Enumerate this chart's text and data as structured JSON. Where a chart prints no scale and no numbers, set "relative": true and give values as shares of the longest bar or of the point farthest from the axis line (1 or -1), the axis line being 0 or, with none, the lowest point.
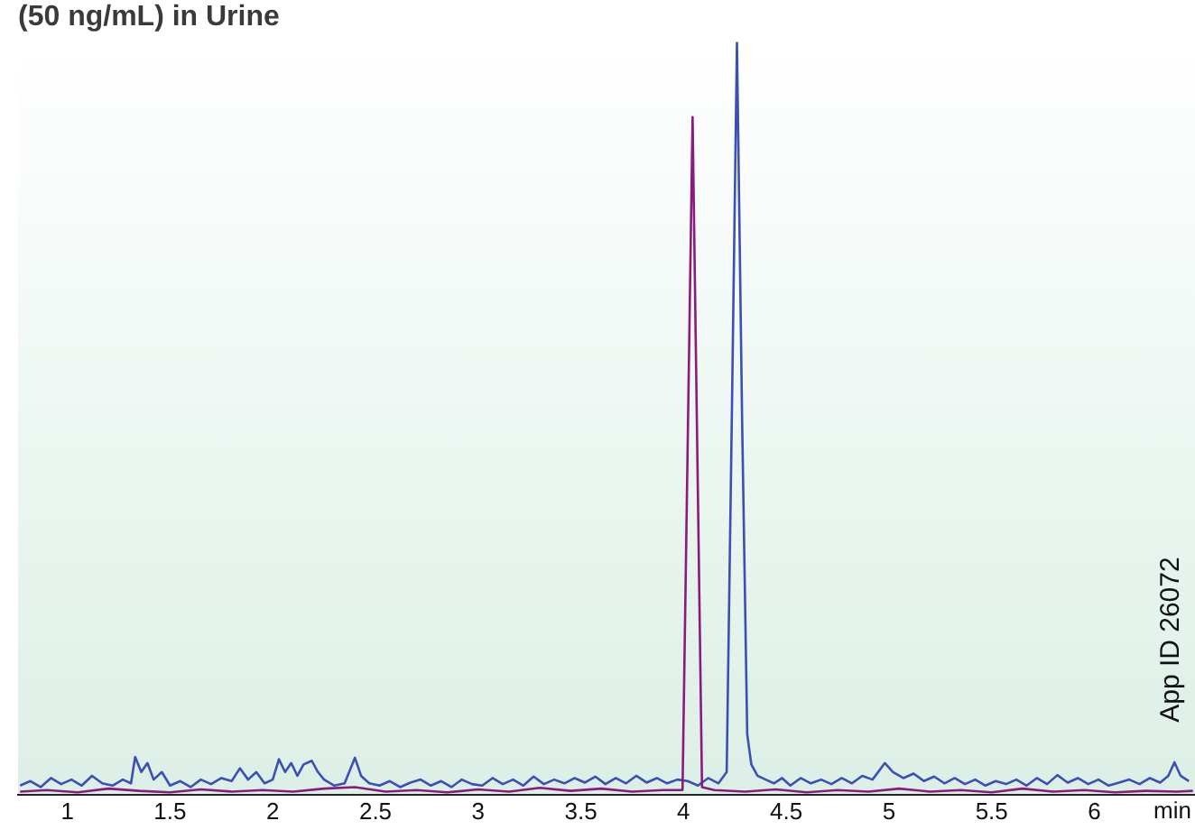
{
  "chart_data": {
    "type": "line",
    "title": "(50 ng/mL) in Urine",
    "xlabel": "min",
    "annotations": [
      "App ID 26072"
    ],
    "relative": true,
    "xlim": [
      0.76,
      6.49
    ],
    "xticks": [
      1,
      1.5,
      2,
      2.5,
      3,
      3.5,
      4,
      4.5,
      5,
      5.5,
      6
    ],
    "grid": false,
    "legend": false,
    "marker": "none",
    "line_style": "solid",
    "series": [
      {
        "color": "#8b1a80",
        "x": [
          0.77,
          0.9,
          1.05,
          1.2,
          1.35,
          1.5,
          1.65,
          1.8,
          1.95,
          2.1,
          2.25,
          2.4,
          2.55,
          2.7,
          2.85,
          3.0,
          3.15,
          3.3,
          3.45,
          3.6,
          3.75,
          3.9,
          3.995,
          4.044,
          4.09,
          4.15,
          4.3,
          4.45,
          4.6,
          4.75,
          4.9,
          5.05,
          5.2,
          5.35,
          5.5,
          5.65,
          5.8,
          5.95,
          6.1,
          6.25,
          6.4,
          6.48
        ],
        "values": [
          0.004,
          0.006,
          0.003,
          0.008,
          0.005,
          0.003,
          0.007,
          0.004,
          0.006,
          0.004,
          0.008,
          0.01,
          0.004,
          0.006,
          0.003,
          0.007,
          0.004,
          0.009,
          0.005,
          0.008,
          0.004,
          0.006,
          0.006,
          0.9,
          0.01,
          0.006,
          0.004,
          0.007,
          0.003,
          0.006,
          0.004,
          0.008,
          0.004,
          0.006,
          0.003,
          0.008,
          0.004,
          0.006,
          0.003,
          0.005,
          0.004,
          0.005
        ]
      },
      {
        "color": "#3b4fb4",
        "x": [
          0.77,
          0.82,
          0.87,
          0.92,
          0.97,
          1.02,
          1.07,
          1.12,
          1.17,
          1.22,
          1.27,
          1.31,
          1.33,
          1.36,
          1.39,
          1.42,
          1.46,
          1.5,
          1.55,
          1.6,
          1.65,
          1.7,
          1.75,
          1.8,
          1.84,
          1.88,
          1.92,
          1.96,
          2.0,
          2.03,
          2.06,
          2.09,
          2.12,
          2.15,
          2.19,
          2.22,
          2.25,
          2.3,
          2.35,
          2.4,
          2.43,
          2.47,
          2.52,
          2.57,
          2.62,
          2.67,
          2.72,
          2.77,
          2.82,
          2.87,
          2.92,
          2.97,
          3.02,
          3.07,
          3.12,
          3.17,
          3.22,
          3.27,
          3.32,
          3.37,
          3.42,
          3.47,
          3.52,
          3.57,
          3.62,
          3.67,
          3.72,
          3.77,
          3.82,
          3.87,
          3.92,
          3.97,
          4.02,
          4.07,
          4.12,
          4.17,
          4.21,
          4.235,
          4.26,
          4.285,
          4.31,
          4.33,
          4.36,
          4.4,
          4.44,
          4.48,
          4.52,
          4.57,
          4.62,
          4.67,
          4.72,
          4.77,
          4.82,
          4.87,
          4.92,
          4.98,
          5.02,
          5.07,
          5.12,
          5.17,
          5.22,
          5.27,
          5.32,
          5.37,
          5.42,
          5.47,
          5.52,
          5.57,
          5.62,
          5.67,
          5.72,
          5.77,
          5.82,
          5.87,
          5.92,
          5.97,
          6.02,
          6.07,
          6.12,
          6.17,
          6.22,
          6.27,
          6.32,
          6.36,
          6.39,
          6.42,
          6.46
        ],
        "values": [
          0.012,
          0.018,
          0.01,
          0.022,
          0.014,
          0.02,
          0.012,
          0.025,
          0.015,
          0.012,
          0.02,
          0.015,
          0.05,
          0.03,
          0.042,
          0.02,
          0.03,
          0.012,
          0.018,
          0.01,
          0.02,
          0.014,
          0.022,
          0.018,
          0.035,
          0.02,
          0.03,
          0.015,
          0.02,
          0.047,
          0.03,
          0.042,
          0.025,
          0.04,
          0.045,
          0.03,
          0.02,
          0.012,
          0.015,
          0.049,
          0.025,
          0.015,
          0.012,
          0.018,
          0.01,
          0.016,
          0.02,
          0.012,
          0.018,
          0.01,
          0.02,
          0.014,
          0.012,
          0.022,
          0.014,
          0.02,
          0.012,
          0.024,
          0.014,
          0.02,
          0.015,
          0.022,
          0.016,
          0.024,
          0.014,
          0.022,
          0.015,
          0.025,
          0.016,
          0.022,
          0.015,
          0.02,
          0.018,
          0.012,
          0.022,
          0.015,
          0.03,
          0.5,
          1,
          0.5,
          0.08,
          0.04,
          0.025,
          0.02,
          0.015,
          0.022,
          0.012,
          0.022,
          0.015,
          0.02,
          0.014,
          0.022,
          0.015,
          0.025,
          0.02,
          0.042,
          0.03,
          0.022,
          0.028,
          0.018,
          0.024,
          0.015,
          0.022,
          0.014,
          0.02,
          0.012,
          0.018,
          0.014,
          0.02,
          0.012,
          0.022,
          0.014,
          0.026,
          0.016,
          0.022,
          0.014,
          0.02,
          0.012,
          0.016,
          0.02,
          0.014,
          0.022,
          0.016,
          0.025,
          0.043,
          0.025,
          0.018
        ]
      }
    ]
  }
}
